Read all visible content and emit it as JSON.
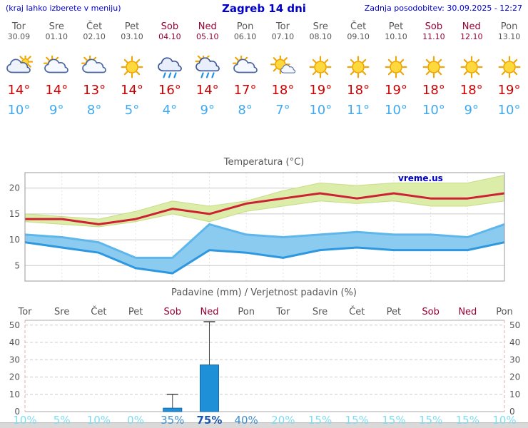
{
  "header": {
    "hint": "(kraj lahko izberete v meniju)",
    "title": "Zagreb 14 dni",
    "last_updated": "Zadnja posodobitev: 30.09.2025 - 12:27"
  },
  "watermark": "vreme.us",
  "days": [
    {
      "name": "Tor",
      "date": "30.09",
      "weekend": false,
      "icon": "cloudy",
      "tmax": "14°",
      "tmin": "10°"
    },
    {
      "name": "Sre",
      "date": "01.10",
      "weekend": false,
      "icon": "partly-cloudy",
      "tmax": "14°",
      "tmin": "9°"
    },
    {
      "name": "Čet",
      "date": "02.10",
      "weekend": false,
      "icon": "partly-cloudy",
      "tmax": "13°",
      "tmin": "8°"
    },
    {
      "name": "Pet",
      "date": "03.10",
      "weekend": false,
      "icon": "sunny",
      "tmax": "14°",
      "tmin": "5°"
    },
    {
      "name": "Sob",
      "date": "04.10",
      "weekend": true,
      "icon": "rain",
      "tmax": "16°",
      "tmin": "4°"
    },
    {
      "name": "Ned",
      "date": "05.10",
      "weekend": true,
      "icon": "rain-sun",
      "tmax": "14°",
      "tmin": "9°"
    },
    {
      "name": "Pon",
      "date": "06.10",
      "weekend": false,
      "icon": "partly-cloudy",
      "tmax": "17°",
      "tmin": "8°"
    },
    {
      "name": "Tor",
      "date": "07.10",
      "weekend": false,
      "icon": "mostly-sunny",
      "tmax": "18°",
      "tmin": "7°"
    },
    {
      "name": "Sre",
      "date": "08.10",
      "weekend": false,
      "icon": "sunny",
      "tmax": "19°",
      "tmin": "10°"
    },
    {
      "name": "Čet",
      "date": "09.10",
      "weekend": false,
      "icon": "sunny",
      "tmax": "18°",
      "tmin": "11°"
    },
    {
      "name": "Pet",
      "date": "10.10",
      "weekend": false,
      "icon": "sunny",
      "tmax": "19°",
      "tmin": "10°"
    },
    {
      "name": "Sob",
      "date": "11.10",
      "weekend": true,
      "icon": "sunny",
      "tmax": "18°",
      "tmin": "10°"
    },
    {
      "name": "Ned",
      "date": "12.10",
      "weekend": true,
      "icon": "sunny",
      "tmax": "18°",
      "tmin": "9°"
    },
    {
      "name": "Pon",
      "date": "13.10",
      "weekend": false,
      "icon": "sunny",
      "tmax": "19°",
      "tmin": "10°"
    }
  ],
  "chart_data": [
    {
      "type": "area",
      "title": "Temperatura (°C)",
      "x_labels": [
        "Tor",
        "Sre",
        "Čet",
        "Pet",
        "Sob",
        "Ned",
        "Pon",
        "Tor",
        "Sre",
        "Čet",
        "Pet",
        "Sob",
        "Ned",
        "Pon"
      ],
      "ylim": [
        2,
        23
      ],
      "yticks": [
        5,
        10,
        15,
        20
      ],
      "grid": true,
      "legend": "none",
      "series": [
        {
          "name": "tmax-range-upper",
          "values": [
            15,
            14.5,
            14,
            15.5,
            17.5,
            16.5,
            17.5,
            19.5,
            21,
            20.5,
            21,
            21,
            21,
            22.5
          ]
        },
        {
          "name": "tmax-range-lower",
          "values": [
            13.5,
            13,
            12.5,
            13.5,
            15,
            13.5,
            15.5,
            16.5,
            17.5,
            17,
            17.5,
            16.5,
            16.5,
            17.5
          ]
        },
        {
          "name": "tmax-mean",
          "values": [
            14,
            14,
            13,
            14,
            16,
            15,
            17,
            18,
            19,
            18,
            19,
            18,
            18,
            19
          ]
        },
        {
          "name": "tmin-range-upper",
          "values": [
            11,
            10.5,
            9.5,
            6.5,
            6.5,
            13,
            11,
            10.5,
            11,
            11.5,
            11,
            11,
            10.5,
            13
          ]
        },
        {
          "name": "tmin-range-lower",
          "values": [
            9.5,
            8.5,
            7.5,
            4.5,
            3.5,
            8,
            7.5,
            6.5,
            8,
            8.5,
            8,
            8,
            8,
            9.5
          ]
        }
      ]
    },
    {
      "type": "bar",
      "title": "Padavine (mm) / Verjetnost padavin (%)",
      "categories": [
        "Tor",
        "Sre",
        "Čet",
        "Pet",
        "Sob",
        "Ned",
        "Pon",
        "Tor",
        "Sre",
        "Čet",
        "Pet",
        "Sob",
        "Ned",
        "Pon"
      ],
      "ylim": [
        0,
        52.8
      ],
      "yticks": [
        0,
        10,
        20,
        30,
        40,
        50
      ],
      "precip_mm": [
        0,
        0,
        0,
        0,
        2,
        27,
        0,
        0,
        0,
        0,
        0,
        0,
        0,
        0
      ],
      "precip_max_mm": [
        0,
        0,
        0,
        0,
        10,
        52,
        0,
        0,
        0,
        0,
        0,
        0,
        0,
        0
      ],
      "probability": [
        "10%",
        "5%",
        "10%",
        "0%",
        "35%",
        "75%",
        "40%",
        "20%",
        "15%",
        "15%",
        "15%",
        "15%",
        "15%",
        "10%"
      ]
    }
  ],
  "colors": {
    "header_blue": "#0000d8",
    "weekday_gray": "#555555",
    "weekend_red": "#990033",
    "tmax_red": "#cc0000",
    "tmin_blue": "#3fa9f0",
    "temp_line": "#cc2233",
    "temp_band_max": "#dcedaa",
    "temp_band_max_edge": "#c8dc85",
    "temp_band_min": "#8ccbf0",
    "temp_band_min_top": "#5fb6ea",
    "temp_band_min_bottom": "#2d97e0",
    "bar_blue": "#1e90d8",
    "bar_blue_edge": "#1467a8",
    "prob_low": "#7fdcef",
    "prob_mid": "#3f8fd0",
    "prob_high": "#1a55b0"
  }
}
